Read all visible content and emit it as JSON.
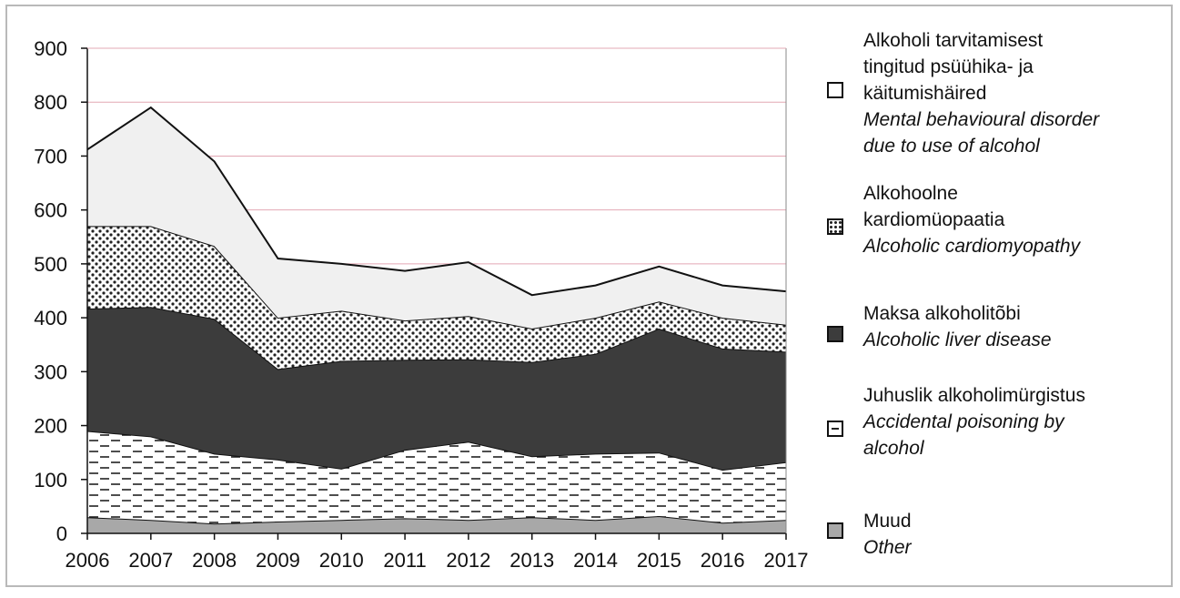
{
  "chart_data": {
    "type": "area",
    "stacked": true,
    "x": [
      "2006",
      "2007",
      "2008",
      "2009",
      "2010",
      "2011",
      "2012",
      "2013",
      "2014",
      "2015",
      "2016",
      "2017"
    ],
    "ylim": [
      0,
      900
    ],
    "yticks": [
      "0",
      "100",
      "200",
      "300",
      "400",
      "500",
      "600",
      "700",
      "800",
      "900"
    ],
    "grid": true,
    "legend_position": "right",
    "series": [
      {
        "key": "other",
        "name_lines": [
          "Muud"
        ],
        "name_en_lines": [
          "Other"
        ],
        "pattern": "solid-gray",
        "values": [
          30,
          25,
          18,
          22,
          25,
          28,
          25,
          30,
          25,
          32,
          20,
          25
        ]
      },
      {
        "key": "poisoning",
        "name_lines": [
          "Juhuslik alkoholimürgistus"
        ],
        "name_en_lines": [
          "Accidental poisoning by",
          "alcohol"
        ],
        "pattern": "dashes",
        "values": [
          160,
          155,
          130,
          115,
          95,
          127,
          145,
          113,
          123,
          118,
          98,
          107
        ]
      },
      {
        "key": "liver",
        "name_lines": [
          "Maksa alkoholitõbi"
        ],
        "name_en_lines": [
          "Alcoholic liver disease"
        ],
        "pattern": "solid-dark",
        "values": [
          227,
          240,
          250,
          168,
          200,
          167,
          153,
          175,
          185,
          230,
          225,
          205
        ]
      },
      {
        "key": "cardiomyopathy",
        "name_lines": [
          "Alkohoolne",
          "kardiomüopaatia"
        ],
        "name_en_lines": [
          "Alcoholic cardiomyopathy"
        ],
        "pattern": "dots",
        "values": [
          153,
          150,
          135,
          95,
          93,
          73,
          80,
          62,
          67,
          50,
          57,
          50
        ]
      },
      {
        "key": "mental",
        "name_lines": [
          "Alkoholi tarvitamisest",
          "tingitud psüühika- ja",
          "käitumishäired"
        ],
        "name_en_lines": [
          "Mental behavioural disorder",
          "due to use of alcohol"
        ],
        "pattern": "light-gray",
        "values": [
          142,
          220,
          157,
          110,
          87,
          92,
          100,
          62,
          60,
          65,
          60,
          62
        ]
      }
    ]
  },
  "legend": [
    {
      "key": "mental",
      "top": 0
    },
    {
      "key": "cardiomyopathy",
      "top": 0
    },
    {
      "key": "liver",
      "top": 0
    },
    {
      "key": "poisoning",
      "top": 0
    },
    {
      "key": "other",
      "top": 0
    }
  ],
  "colors": {
    "other": "#a8a8a8",
    "liver": "#3c3c3c",
    "mental": "#f0f0f0",
    "outline": "#111111",
    "grid": "#e3a8b4"
  }
}
